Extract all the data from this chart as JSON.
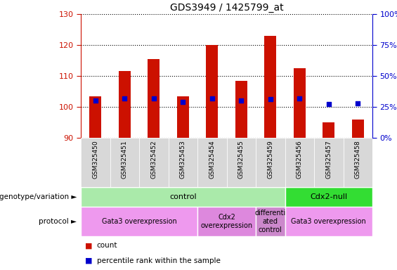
{
  "title": "GDS3949 / 1425799_at",
  "samples": [
    "GSM325450",
    "GSM325451",
    "GSM325452",
    "GSM325453",
    "GSM325454",
    "GSM325455",
    "GSM325459",
    "GSM325456",
    "GSM325457",
    "GSM325458"
  ],
  "bar_heights": [
    103.5,
    111.5,
    115.5,
    103.5,
    120,
    108.5,
    123,
    112.5,
    95,
    96
  ],
  "bar_base": 90,
  "percentile_ranks": [
    30,
    32,
    32,
    29,
    32,
    30,
    31,
    32,
    27,
    28
  ],
  "ylim_left": [
    90,
    130
  ],
  "ylim_right": [
    0,
    100
  ],
  "yticks_left": [
    90,
    100,
    110,
    120,
    130
  ],
  "yticks_right": [
    0,
    25,
    50,
    75,
    100
  ],
  "bar_color": "#cc1100",
  "dot_color": "#0000cc",
  "plot_bg": "#ffffff",
  "grid_color": "#000000",
  "tick_area_color": "#d8d8d8",
  "genotype_groups": [
    {
      "label": "control",
      "start": 0,
      "end": 6,
      "color": "#aaeaaa"
    },
    {
      "label": "Cdx2-null",
      "start": 7,
      "end": 9,
      "color": "#33dd33"
    }
  ],
  "protocol_groups": [
    {
      "label": "Gata3 overexpression",
      "start": 0,
      "end": 3,
      "color": "#ee99ee"
    },
    {
      "label": "Cdx2\noverexpression",
      "start": 4,
      "end": 5,
      "color": "#dd88dd"
    },
    {
      "label": "differenti\nated\ncontrol",
      "start": 6,
      "end": 6,
      "color": "#cc88cc"
    },
    {
      "label": "Gata3 overexpression",
      "start": 7,
      "end": 9,
      "color": "#ee99ee"
    }
  ],
  "axis_label_color_left": "#cc1100",
  "axis_label_color_right": "#0000cc",
  "left_margin_labels": [
    "genotype/variation",
    "protocol"
  ],
  "legend_labels": [
    "count",
    "percentile rank within the sample"
  ]
}
